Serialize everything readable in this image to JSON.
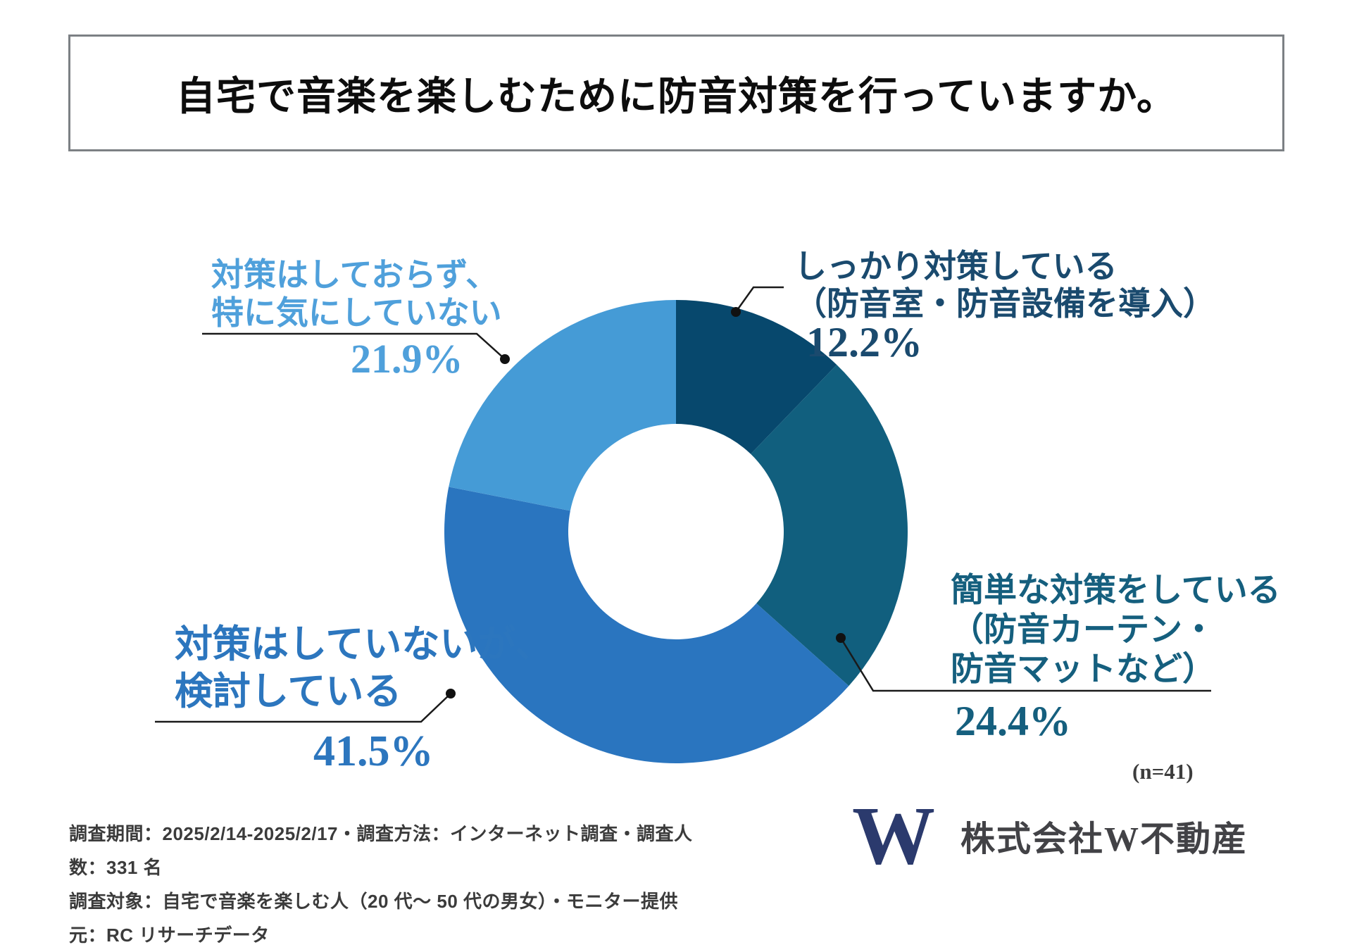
{
  "header": {
    "title": "自宅で音楽を楽しむために防音対策を行っていますか。"
  },
  "chart_data": {
    "type": "pie",
    "subtype": "donut",
    "title": "自宅で音楽を楽しむために防音対策を行っていますか。",
    "n_label": "(n=41)",
    "start_angle_deg": 0,
    "direction": "clockwise",
    "segments": [
      {
        "name": "しっかり対策している（防音室・防音設備を導入）",
        "label_lines": [
          "しっかり対策している",
          "（防音室・防音設備を導入）"
        ],
        "value": 12.2,
        "pct": "12.2%",
        "color": "#07486D",
        "text_color": "#1A4A6E"
      },
      {
        "name": "簡単な対策をしている（防音カーテン・防音マットなど）",
        "label_lines": [
          "簡単な対策をしている",
          "（防音カーテン・",
          "防音マットなど）"
        ],
        "value": 24.4,
        "pct": "24.4%",
        "color": "#115F7E",
        "text_color": "#155F7E"
      },
      {
        "name": "対策はしていないが、検討している",
        "label_lines": [
          "対策はしていないが、",
          "検討している"
        ],
        "value": 41.5,
        "pct": "41.5%",
        "color": "#2A75BF",
        "text_color": "#2C76BE"
      },
      {
        "name": "対策はしておらず、特に気にしていない",
        "label_lines": [
          "対策はしておらず、",
          "特に気にしていない"
        ],
        "value": 21.9,
        "pct": "21.9%",
        "color": "#459BD6",
        "text_color": "#4FA0DB"
      }
    ]
  },
  "footer": {
    "line1": "調査期間：2025/2/14-2025/2/17・調査方法：インターネット調査・調査人数：331 名",
    "line2": "調査対象：自宅で音楽を楽しむ人（20 代～ 50 代の男女）・モニター提供元：RC リサーチデータ"
  },
  "branding": {
    "logo_letter": "W",
    "logo_color": "#2B3A6D",
    "company": "株式会社W不動産"
  }
}
